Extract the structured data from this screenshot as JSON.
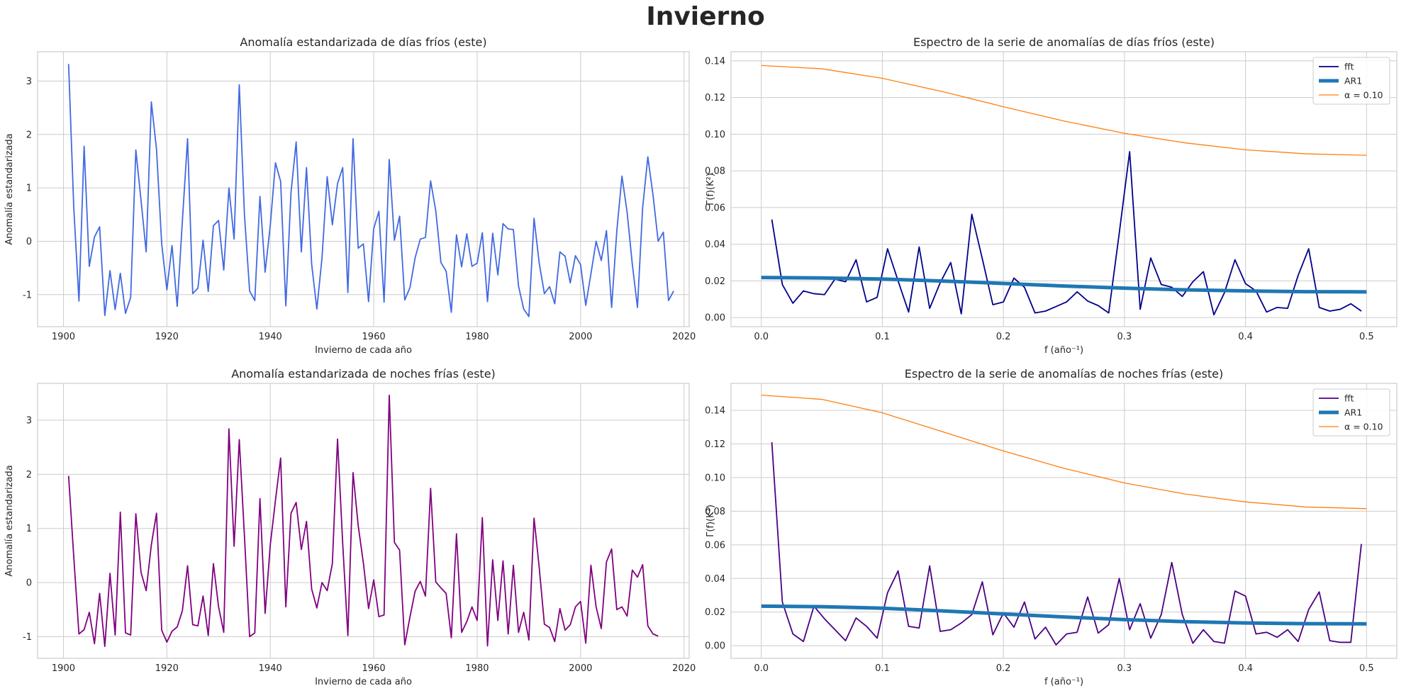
{
  "figure": {
    "title": "Invierno"
  },
  "chart_data": [
    {
      "type": "line",
      "title": "Anomalía estandarizada de días fríos (este)",
      "xlabel": "Invierno de cada año",
      "ylabel": "Anomalía estandarizada",
      "x_start": 1901,
      "x_step": 1,
      "xlim": [
        1895,
        2021
      ],
      "ylim": [
        -1.6,
        3.55
      ],
      "xticks": [
        1900,
        1920,
        1940,
        1960,
        1980,
        2000,
        2020
      ],
      "yticks": [
        -1,
        0,
        1,
        2,
        3
      ],
      "grid": true,
      "color": "#4169e1",
      "series": [
        {
          "values": [
            3.32,
            0.62,
            -1.12,
            1.78,
            -0.47,
            0.08,
            0.27,
            -1.39,
            -0.55,
            -1.28,
            -0.6,
            -1.35,
            -1.05,
            1.71,
            0.77,
            -0.2,
            2.61,
            1.72,
            -0.05,
            -0.91,
            -0.08,
            -1.22,
            0.38,
            1.92,
            -0.98,
            -0.88,
            0.02,
            -0.94,
            0.29,
            0.39,
            -0.54,
            1.0,
            0.04,
            2.93,
            0.5,
            -0.93,
            -1.11,
            0.84,
            -0.58,
            0.3,
            1.47,
            1.12,
            -1.21,
            0.91,
            1.86,
            -0.2,
            1.38,
            -0.43,
            -1.27,
            -0.31,
            1.21,
            0.31,
            1.08,
            1.38,
            -0.96,
            1.92,
            -0.13,
            -0.05,
            -1.13,
            0.24,
            0.56,
            -1.14,
            1.53,
            0.02,
            0.47,
            -1.1,
            -0.87,
            -0.31,
            0.04,
            0.07,
            1.13,
            0.57,
            -0.4,
            -0.56,
            -1.33,
            0.12,
            -0.48,
            0.14,
            -0.47,
            -0.41,
            0.16,
            -1.13,
            0.15,
            -0.63,
            0.33,
            0.23,
            0.22,
            -0.84,
            -1.27,
            -1.41,
            0.43,
            -0.41,
            -0.98,
            -0.85,
            -1.17,
            -0.2,
            -0.28,
            -0.78,
            -0.27,
            -0.44,
            -1.2,
            -0.61,
            0.0,
            -0.36,
            0.2,
            -1.24,
            0.19,
            1.22,
            0.54,
            -0.43,
            -1.24,
            0.63,
            1.58,
            0.87,
            0.0,
            0.17,
            -1.11,
            -0.93
          ]
        }
      ]
    },
    {
      "type": "line",
      "title": "Espectro de la serie de anomalías de días fríos (este)",
      "xlabel": "f (año⁻¹)",
      "ylabel": "Γ(f)(K²)",
      "xlim": [
        -0.025,
        0.525
      ],
      "ylim": [
        -0.005,
        0.145
      ],
      "xticks": [
        0.0,
        0.1,
        0.2,
        0.3,
        0.4,
        0.5
      ],
      "yticks": [
        0.0,
        0.02,
        0.04,
        0.06,
        0.08,
        0.1,
        0.12,
        0.14
      ],
      "grid": true,
      "legend_position": "top-right",
      "series": [
        {
          "name": "fft",
          "color": "#00008b",
          "width": 1.8,
          "x": [
            0.0087,
            0.0174,
            0.0261,
            0.0348,
            0.0435,
            0.0522,
            0.0609,
            0.0696,
            0.0783,
            0.087,
            0.0957,
            0.1043,
            0.113,
            0.1217,
            0.1304,
            0.1391,
            0.1478,
            0.1565,
            0.1652,
            0.1739,
            0.1826,
            0.1913,
            0.2,
            0.2087,
            0.2174,
            0.2261,
            0.2348,
            0.2435,
            0.2522,
            0.2609,
            0.2696,
            0.2783,
            0.287,
            0.2957,
            0.3043,
            0.313,
            0.3217,
            0.3304,
            0.3391,
            0.3478,
            0.3565,
            0.3652,
            0.3739,
            0.3826,
            0.3913,
            0.4,
            0.4087,
            0.4174,
            0.4261,
            0.4348,
            0.4435,
            0.4522,
            0.4609,
            0.4696,
            0.4783,
            0.487,
            0.4957
          ],
          "values": [
            0.0535,
            0.018,
            0.0078,
            0.0145,
            0.013,
            0.0125,
            0.021,
            0.0195,
            0.0315,
            0.0085,
            0.011,
            0.0375,
            0.02,
            0.003,
            0.0385,
            0.005,
            0.019,
            0.03,
            0.002,
            0.0563,
            0.032,
            0.007,
            0.0085,
            0.0215,
            0.0165,
            0.0025,
            0.0035,
            0.006,
            0.0085,
            0.014,
            0.009,
            0.0065,
            0.0025,
            0.046,
            0.0905,
            0.0045,
            0.0325,
            0.018,
            0.0165,
            0.0115,
            0.0195,
            0.025,
            0.0015,
            0.0135,
            0.0315,
            0.0185,
            0.0145,
            0.003,
            0.0055,
            0.005,
            0.023,
            0.0375,
            0.0055,
            0.0035,
            0.0045,
            0.0075,
            0.0035
          ]
        },
        {
          "name": "AR1",
          "color": "#1f77b4",
          "width": 5,
          "x": [
            0.0,
            0.05,
            0.1,
            0.15,
            0.2,
            0.25,
            0.3,
            0.35,
            0.4,
            0.45,
            0.5
          ],
          "values": [
            0.0218,
            0.0216,
            0.021,
            0.0199,
            0.0186,
            0.0172,
            0.016,
            0.0151,
            0.0145,
            0.0141,
            0.014
          ]
        },
        {
          "name": "α = 0.10",
          "color": "#ff7f0e",
          "width": 1.3,
          "x": [
            0.0,
            0.05,
            0.1,
            0.15,
            0.2,
            0.25,
            0.3,
            0.35,
            0.4,
            0.45,
            0.5
          ],
          "values": [
            0.1375,
            0.1357,
            0.1305,
            0.1232,
            0.115,
            0.1072,
            0.1005,
            0.0953,
            0.0915,
            0.0893,
            0.0885
          ]
        }
      ]
    },
    {
      "type": "line",
      "title": "Anomalía estandarizada de noches frías (este)",
      "xlabel": "Invierno de cada año",
      "ylabel": "Anomalía estandarizada",
      "x_start": 1901,
      "x_step": 1,
      "xlim": [
        1895,
        2021
      ],
      "ylim": [
        -1.4,
        3.68
      ],
      "xticks": [
        1900,
        1920,
        1940,
        1960,
        1980,
        2000,
        2020
      ],
      "yticks": [
        -1,
        0,
        1,
        2,
        3
      ],
      "grid": true,
      "color": "#800080",
      "series": [
        {
          "values": [
            1.97,
            0.47,
            -0.95,
            -0.87,
            -0.55,
            -1.13,
            -0.2,
            -1.18,
            0.17,
            -0.97,
            1.3,
            -0.93,
            -0.97,
            1.27,
            0.19,
            -0.15,
            0.7,
            1.28,
            -0.88,
            -1.1,
            -0.9,
            -0.82,
            -0.52,
            0.31,
            -0.78,
            -0.8,
            -0.25,
            -0.98,
            0.35,
            -0.45,
            -0.92,
            2.84,
            0.67,
            2.64,
            0.86,
            -1.0,
            -0.93,
            1.55,
            -0.57,
            0.7,
            1.52,
            2.3,
            -0.45,
            1.28,
            1.48,
            0.61,
            1.13,
            -0.12,
            -0.47,
            0.0,
            -0.15,
            0.35,
            2.65,
            0.72,
            -0.98,
            2.03,
            1.05,
            0.36,
            -0.48,
            0.05,
            -0.63,
            -0.6,
            3.46,
            0.74,
            0.6,
            -1.15,
            -0.64,
            -0.16,
            0.02,
            -0.25,
            1.74,
            0.01,
            -0.1,
            -0.2,
            -1.02,
            0.9,
            -0.92,
            -0.72,
            -0.45,
            -0.7,
            1.2,
            -1.17,
            0.42,
            -0.7,
            0.4,
            -0.95,
            0.32,
            -0.92,
            -0.55,
            -1.06,
            1.19,
            0.28,
            -0.77,
            -0.83,
            -1.09,
            -0.48,
            -0.88,
            -0.78,
            -0.45,
            -0.35,
            -1.12,
            0.32,
            -0.45,
            -0.85,
            0.38,
            0.62,
            -0.5,
            -0.45,
            -0.62,
            0.23,
            0.1,
            0.33,
            -0.8,
            -0.95,
            -0.99
          ]
        }
      ]
    },
    {
      "type": "line",
      "title": "Espectro de la serie de anomalías de noches frías (este)",
      "xlabel": "f (año⁻¹)",
      "ylabel": "Γ(f)(K²)",
      "xlim": [
        -0.025,
        0.525
      ],
      "ylim": [
        -0.0075,
        0.156
      ],
      "xticks": [
        0.0,
        0.1,
        0.2,
        0.3,
        0.4,
        0.5
      ],
      "yticks": [
        0.0,
        0.02,
        0.04,
        0.06,
        0.08,
        0.1,
        0.12,
        0.14
      ],
      "grid": true,
      "legend_position": "top-right",
      "series": [
        {
          "name": "fft",
          "color": "#4b0082",
          "width": 1.8,
          "x": [
            0.0087,
            0.0174,
            0.0261,
            0.0348,
            0.0435,
            0.0522,
            0.0609,
            0.0696,
            0.0783,
            0.087,
            0.0957,
            0.1043,
            0.113,
            0.1217,
            0.1304,
            0.1391,
            0.1478,
            0.1565,
            0.1652,
            0.1739,
            0.1826,
            0.1913,
            0.2,
            0.2087,
            0.2174,
            0.2261,
            0.2348,
            0.2435,
            0.2522,
            0.2609,
            0.2696,
            0.2783,
            0.287,
            0.2957,
            0.3043,
            0.313,
            0.3217,
            0.3304,
            0.3391,
            0.3478,
            0.3565,
            0.3652,
            0.3739,
            0.3826,
            0.3913,
            0.4,
            0.4087,
            0.4174,
            0.4261,
            0.4348,
            0.4435,
            0.4522,
            0.4609,
            0.4696,
            0.4783,
            0.487,
            0.4957
          ],
          "values": [
            0.121,
            0.026,
            0.007,
            0.0025,
            0.0235,
            0.016,
            0.0095,
            0.003,
            0.0165,
            0.0115,
            0.0045,
            0.0315,
            0.0445,
            0.0115,
            0.0105,
            0.0475,
            0.0085,
            0.0095,
            0.0135,
            0.0185,
            0.038,
            0.0065,
            0.0195,
            0.011,
            0.026,
            0.004,
            0.011,
            0.0005,
            0.007,
            0.008,
            0.029,
            0.0075,
            0.0125,
            0.04,
            0.0095,
            0.025,
            0.0045,
            0.0185,
            0.0495,
            0.0185,
            0.0015,
            0.0095,
            0.0025,
            0.0015,
            0.0325,
            0.0295,
            0.007,
            0.008,
            0.005,
            0.0095,
            0.0025,
            0.0215,
            0.032,
            0.003,
            0.002,
            0.002,
            0.0605
          ]
        },
        {
          "name": "AR1",
          "color": "#1f77b4",
          "width": 5,
          "x": [
            0.0,
            0.05,
            0.1,
            0.15,
            0.2,
            0.25,
            0.3,
            0.35,
            0.4,
            0.45,
            0.5
          ],
          "values": [
            0.0235,
            0.0232,
            0.0223,
            0.0207,
            0.0189,
            0.0171,
            0.0155,
            0.0143,
            0.0135,
            0.0131,
            0.013
          ]
        },
        {
          "name": "α = 0.10",
          "color": "#ff7f0e",
          "width": 1.3,
          "x": [
            0.0,
            0.05,
            0.1,
            0.15,
            0.2,
            0.25,
            0.3,
            0.35,
            0.4,
            0.45,
            0.5
          ],
          "values": [
            0.149,
            0.1465,
            0.1385,
            0.1272,
            0.1158,
            0.1055,
            0.0968,
            0.0902,
            0.0855,
            0.0825,
            0.0815
          ]
        }
      ]
    }
  ]
}
